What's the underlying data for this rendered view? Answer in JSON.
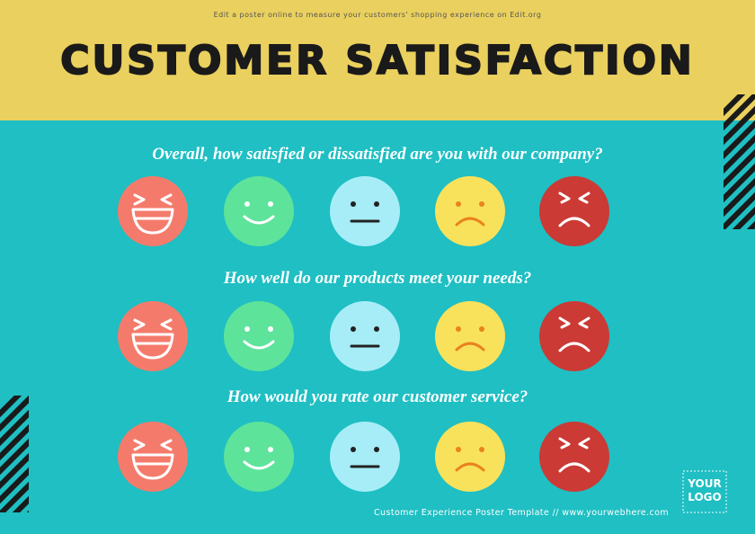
{
  "header": {
    "note": "Edit a poster online to measure your customers' shopping experience on Edit.org",
    "title": "CUSTOMER SATISFACTION"
  },
  "questions": [
    "Overall, how satisfied or dissatisfied are you with our company?",
    "How well do our products meet your needs?",
    "How would you rate our customer service?"
  ],
  "logo": {
    "lines": [
      "YOUR",
      "LOGO"
    ]
  },
  "footer": "Customer Experience Poster Template // www.yourwebhere.com"
}
